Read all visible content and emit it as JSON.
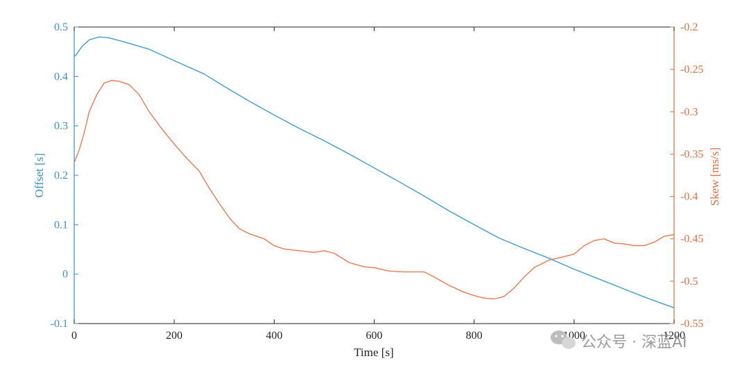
{
  "colors": {
    "left_axis": "#3a8fc8",
    "right_axis": "#e07040",
    "offset_series": "#3d9bd6",
    "skew_series": "#e87a50",
    "axes": "#222222"
  },
  "watermark": {
    "icon": "wechat-icon",
    "text": "公众号 · 深蓝AI"
  },
  "chart_data": {
    "type": "line",
    "xlabel": "Time [s]",
    "ylabel_left": "Offset [s]",
    "ylabel_right": "Skew [ms/s]",
    "xlim": [
      0,
      1200
    ],
    "ylim_left": [
      -0.1,
      0.5
    ],
    "ylim_right": [
      -0.55,
      -0.2
    ],
    "grid": false,
    "xticks": [
      0,
      200,
      400,
      600,
      800,
      1000,
      1200
    ],
    "xtick_labels": [
      "0",
      "200",
      "400",
      "600",
      "800",
      "1000",
      "1200"
    ],
    "yticks_left": [
      -0.1,
      0,
      0.1,
      0.2,
      0.3,
      0.4,
      0.5
    ],
    "ytick_labels_left": [
      "-0.1",
      "0",
      "0.1",
      "0.2",
      "0.3",
      "0.4",
      "0.5"
    ],
    "yticks_right": [
      -0.55,
      -0.5,
      -0.45,
      -0.4,
      -0.35,
      -0.3,
      -0.25,
      -0.2
    ],
    "ytick_labels_right": [
      "-0.55",
      "-0.5",
      "-0.45",
      "-0.4",
      "-0.35",
      "-0.3",
      "-0.25",
      "-0.2"
    ],
    "series": [
      {
        "axis": "left",
        "color": "#3d9bd6",
        "x": [
          0,
          5,
          15,
          30,
          50,
          70,
          100,
          150,
          200,
          260,
          300,
          350,
          400,
          450,
          500,
          550,
          600,
          650,
          700,
          750,
          800,
          850,
          900,
          950,
          1000,
          1050,
          1100,
          1150,
          1200
        ],
        "y": [
          0.44,
          0.445,
          0.46,
          0.474,
          0.48,
          0.478,
          0.47,
          0.455,
          0.432,
          0.405,
          0.38,
          0.35,
          0.322,
          0.295,
          0.27,
          0.243,
          0.215,
          0.187,
          0.158,
          0.128,
          0.1,
          0.073,
          0.052,
          0.032,
          0.01,
          -0.01,
          -0.03,
          -0.05,
          -0.068
        ]
      },
      {
        "axis": "right",
        "color": "#e87a50",
        "x": [
          0,
          10,
          20,
          30,
          45,
          60,
          75,
          90,
          110,
          130,
          150,
          175,
          200,
          225,
          250,
          270,
          290,
          310,
          330,
          350,
          380,
          400,
          420,
          450,
          480,
          500,
          520,
          550,
          580,
          600,
          630,
          660,
          700,
          720,
          750,
          780,
          800,
          820,
          840,
          860,
          880,
          900,
          920,
          950,
          980,
          1000,
          1020,
          1040,
          1060,
          1080,
          1100,
          1120,
          1140,
          1160,
          1180,
          1200
        ],
        "y": [
          -0.36,
          -0.345,
          -0.325,
          -0.3,
          -0.28,
          -0.266,
          -0.263,
          -0.264,
          -0.268,
          -0.28,
          -0.3,
          -0.32,
          -0.338,
          -0.355,
          -0.37,
          -0.39,
          -0.408,
          -0.425,
          -0.438,
          -0.444,
          -0.45,
          -0.458,
          -0.462,
          -0.464,
          -0.466,
          -0.464,
          -0.467,
          -0.478,
          -0.483,
          -0.484,
          -0.488,
          -0.489,
          -0.489,
          -0.495,
          -0.505,
          -0.513,
          -0.517,
          -0.52,
          -0.521,
          -0.518,
          -0.508,
          -0.495,
          -0.484,
          -0.475,
          -0.471,
          -0.468,
          -0.458,
          -0.452,
          -0.45,
          -0.455,
          -0.456,
          -0.458,
          -0.458,
          -0.454,
          -0.447,
          -0.445
        ]
      }
    ]
  }
}
